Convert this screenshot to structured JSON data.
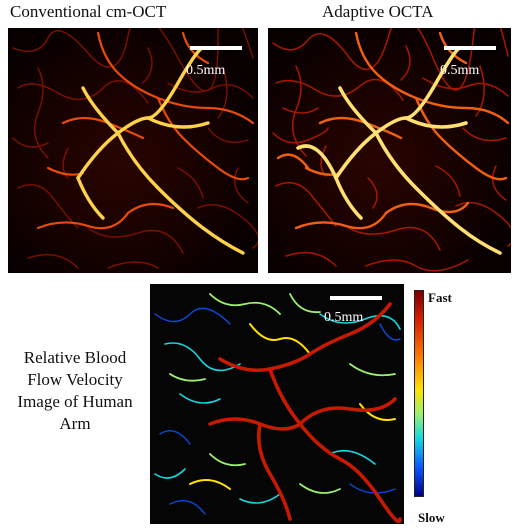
{
  "panels": {
    "conventional": {
      "title": "Conventional cm-OCT",
      "scale_label": "0.5mm"
    },
    "adaptive": {
      "title": "Adaptive OCTA",
      "scale_label": "0.5mm"
    },
    "velocity": {
      "scale_label": "0.5mm"
    }
  },
  "caption": [
    "Relative Blood",
    "Flow Velocity",
    "Image of Human",
    "Arm"
  ],
  "colorbar": {
    "top_label": "Fast",
    "bottom_label": "Slow"
  },
  "colors": {
    "angiogram_background": "#080000",
    "vessel_bright": "#ffd24a",
    "vessel_mid": "#e84b0a",
    "vessel_dim": "#8a1200",
    "velocity_fast": "#c81a00",
    "velocity_slow": "#0a58ff"
  }
}
